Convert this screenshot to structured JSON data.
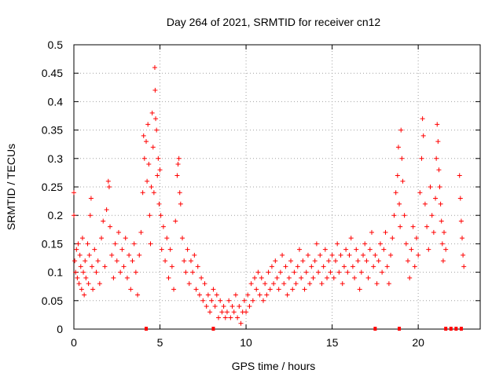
{
  "chart_data": {
    "type": "scatter",
    "title": "Day 264 of 2021, SRMTID for receiver cn12",
    "xlabel": "GPS time / hours",
    "ylabel": "SRMTID / TECUs",
    "xlim": [
      0,
      23.6
    ],
    "ylim": [
      0,
      0.5
    ],
    "x_ticks": [
      0,
      5,
      10,
      15,
      20
    ],
    "x_tick_labels": [
      "0",
      "5",
      "10",
      "15",
      "20"
    ],
    "y_ticks": [
      0,
      0.05,
      0.1,
      0.15,
      0.2,
      0.25,
      0.3,
      0.35,
      0.4,
      0.45,
      0.5
    ],
    "y_tick_labels": [
      "0",
      "0.05",
      "0.1",
      "0.15",
      "0.2",
      "0.25",
      "0.3",
      "0.35",
      "0.4",
      "0.45",
      "0.5"
    ],
    "grid": true,
    "marker": "+",
    "marker_color": "#ff0000",
    "series": [
      {
        "name": "SRMTID",
        "points": [
          [
            0.0,
            0.24
          ],
          [
            0.0,
            0.2
          ],
          [
            0.05,
            0.12
          ],
          [
            0.1,
            0.1
          ],
          [
            0.15,
            0.14
          ],
          [
            0.2,
            0.09
          ],
          [
            0.25,
            0.15
          ],
          [
            0.3,
            0.08
          ],
          [
            0.35,
            0.13
          ],
          [
            0.4,
            0.11
          ],
          [
            0.45,
            0.07
          ],
          [
            0.5,
            0.16
          ],
          [
            0.55,
            0.1
          ],
          [
            0.6,
            0.06
          ],
          [
            0.65,
            0.12
          ],
          [
            0.7,
            0.09
          ],
          [
            0.8,
            0.15
          ],
          [
            0.85,
            0.08
          ],
          [
            0.9,
            0.13
          ],
          [
            0.95,
            0.2
          ],
          [
            1.0,
            0.23
          ],
          [
            1.05,
            0.11
          ],
          [
            1.1,
            0.07
          ],
          [
            1.2,
            0.14
          ],
          [
            1.3,
            0.1
          ],
          [
            1.4,
            0.12
          ],
          [
            1.5,
            0.08
          ],
          [
            1.6,
            0.16
          ],
          [
            1.7,
            0.19
          ],
          [
            1.8,
            0.11
          ],
          [
            1.9,
            0.21
          ],
          [
            2.0,
            0.26
          ],
          [
            2.05,
            0.25
          ],
          [
            2.1,
            0.18
          ],
          [
            2.2,
            0.13
          ],
          [
            2.3,
            0.09
          ],
          [
            2.4,
            0.15
          ],
          [
            2.5,
            0.12
          ],
          [
            2.6,
            0.17
          ],
          [
            2.7,
            0.1
          ],
          [
            2.8,
            0.14
          ],
          [
            2.9,
            0.11
          ],
          [
            3.0,
            0.16
          ],
          [
            3.1,
            0.09
          ],
          [
            3.2,
            0.13
          ],
          [
            3.3,
            0.07
          ],
          [
            3.4,
            0.12
          ],
          [
            3.5,
            0.15
          ],
          [
            3.6,
            0.1
          ],
          [
            3.7,
            0.06
          ],
          [
            3.8,
            0.13
          ],
          [
            3.9,
            0.17
          ],
          [
            4.0,
            0.24
          ],
          [
            4.05,
            0.34
          ],
          [
            4.1,
            0.3
          ],
          [
            4.2,
            0.33
          ],
          [
            4.25,
            0.26
          ],
          [
            4.3,
            0.36
          ],
          [
            4.35,
            0.29
          ],
          [
            4.4,
            0.2
          ],
          [
            4.45,
            0.15
          ],
          [
            4.5,
            0.25
          ],
          [
            4.55,
            0.38
          ],
          [
            4.6,
            0.32
          ],
          [
            4.65,
            0.24
          ],
          [
            4.7,
            0.46
          ],
          [
            4.72,
            0.42
          ],
          [
            4.75,
            0.37
          ],
          [
            4.8,
            0.35
          ],
          [
            4.85,
            0.27
          ],
          [
            4.9,
            0.3
          ],
          [
            4.95,
            0.22
          ],
          [
            5.0,
            0.28
          ],
          [
            5.05,
            0.2
          ],
          [
            5.1,
            0.14
          ],
          [
            5.2,
            0.18
          ],
          [
            5.3,
            0.12
          ],
          [
            5.4,
            0.16
          ],
          [
            5.5,
            0.09
          ],
          [
            5.6,
            0.14
          ],
          [
            5.7,
            0.11
          ],
          [
            5.8,
            0.07
          ],
          [
            5.9,
            0.19
          ],
          [
            6.0,
            0.27
          ],
          [
            6.05,
            0.29
          ],
          [
            6.1,
            0.3
          ],
          [
            6.15,
            0.24
          ],
          [
            6.2,
            0.22
          ],
          [
            6.3,
            0.16
          ],
          [
            6.4,
            0.12
          ],
          [
            6.5,
            0.1
          ],
          [
            6.6,
            0.14
          ],
          [
            6.7,
            0.08
          ],
          [
            6.8,
            0.12
          ],
          [
            6.9,
            0.1
          ],
          [
            7.0,
            0.13
          ],
          [
            7.1,
            0.07
          ],
          [
            7.2,
            0.11
          ],
          [
            7.3,
            0.06
          ],
          [
            7.4,
            0.09
          ],
          [
            7.5,
            0.05
          ],
          [
            7.6,
            0.08
          ],
          [
            7.7,
            0.04
          ],
          [
            7.8,
            0.06
          ],
          [
            7.9,
            0.03
          ],
          [
            8.0,
            0.05
          ],
          [
            8.1,
            0.07
          ],
          [
            8.2,
            0.04
          ],
          [
            8.3,
            0.06
          ],
          [
            8.4,
            0.02
          ],
          [
            8.5,
            0.05
          ],
          [
            8.6,
            0.03
          ],
          [
            8.7,
            0.04
          ],
          [
            8.8,
            0.02
          ],
          [
            8.9,
            0.03
          ],
          [
            9.0,
            0.05
          ],
          [
            9.1,
            0.02
          ],
          [
            9.2,
            0.04
          ],
          [
            9.3,
            0.03
          ],
          [
            9.4,
            0.06
          ],
          [
            9.5,
            0.02
          ],
          [
            9.6,
            0.04
          ],
          [
            9.7,
            0.01
          ],
          [
            9.8,
            0.03
          ],
          [
            9.9,
            0.05
          ],
          [
            10.0,
            0.03
          ],
          [
            10.1,
            0.06
          ],
          [
            10.2,
            0.04
          ],
          [
            10.3,
            0.08
          ],
          [
            10.4,
            0.05
          ],
          [
            10.5,
            0.09
          ],
          [
            10.6,
            0.07
          ],
          [
            10.7,
            0.1
          ],
          [
            10.8,
            0.06
          ],
          [
            10.9,
            0.09
          ],
          [
            11.0,
            0.05
          ],
          [
            11.1,
            0.08
          ],
          [
            11.2,
            0.06
          ],
          [
            11.3,
            0.1
          ],
          [
            11.4,
            0.07
          ],
          [
            11.5,
            0.11
          ],
          [
            11.6,
            0.08
          ],
          [
            11.7,
            0.12
          ],
          [
            11.8,
            0.09
          ],
          [
            11.9,
            0.07
          ],
          [
            12.0,
            0.1
          ],
          [
            12.1,
            0.13
          ],
          [
            12.2,
            0.08
          ],
          [
            12.3,
            0.11
          ],
          [
            12.4,
            0.06
          ],
          [
            12.5,
            0.09
          ],
          [
            12.6,
            0.12
          ],
          [
            12.7,
            0.07
          ],
          [
            12.8,
            0.1
          ],
          [
            12.9,
            0.08
          ],
          [
            13.0,
            0.11
          ],
          [
            13.1,
            0.14
          ],
          [
            13.2,
            0.09
          ],
          [
            13.3,
            0.12
          ],
          [
            13.4,
            0.07
          ],
          [
            13.5,
            0.1
          ],
          [
            13.6,
            0.13
          ],
          [
            13.7,
            0.08
          ],
          [
            13.8,
            0.11
          ],
          [
            13.9,
            0.09
          ],
          [
            14.0,
            0.12
          ],
          [
            14.1,
            0.15
          ],
          [
            14.2,
            0.1
          ],
          [
            14.3,
            0.13
          ],
          [
            14.4,
            0.08
          ],
          [
            14.5,
            0.11
          ],
          [
            14.6,
            0.14
          ],
          [
            14.7,
            0.09
          ],
          [
            14.8,
            0.12
          ],
          [
            14.9,
            0.1
          ],
          [
            15.0,
            0.13
          ],
          [
            15.1,
            0.09
          ],
          [
            15.2,
            0.12
          ],
          [
            15.3,
            0.15
          ],
          [
            15.4,
            0.1
          ],
          [
            15.5,
            0.13
          ],
          [
            15.6,
            0.08
          ],
          [
            15.7,
            0.11
          ],
          [
            15.8,
            0.14
          ],
          [
            15.9,
            0.1
          ],
          [
            16.0,
            0.13
          ],
          [
            16.1,
            0.16
          ],
          [
            16.2,
            0.11
          ],
          [
            16.3,
            0.09
          ],
          [
            16.4,
            0.14
          ],
          [
            16.5,
            0.12
          ],
          [
            16.6,
            0.07
          ],
          [
            16.7,
            0.1
          ],
          [
            16.8,
            0.13
          ],
          [
            16.9,
            0.15
          ],
          [
            17.0,
            0.12
          ],
          [
            17.1,
            0.09
          ],
          [
            17.2,
            0.14
          ],
          [
            17.3,
            0.17
          ],
          [
            17.4,
            0.11
          ],
          [
            17.5,
            0.13
          ],
          [
            17.6,
            0.08
          ],
          [
            17.7,
            0.12
          ],
          [
            17.8,
            0.15
          ],
          [
            17.9,
            0.1
          ],
          [
            18.0,
            0.14
          ],
          [
            18.1,
            0.17
          ],
          [
            18.2,
            0.11
          ],
          [
            18.3,
            0.08
          ],
          [
            18.4,
            0.13
          ],
          [
            18.5,
            0.16
          ],
          [
            18.6,
            0.2
          ],
          [
            18.7,
            0.24
          ],
          [
            18.8,
            0.27
          ],
          [
            18.85,
            0.32
          ],
          [
            18.9,
            0.22
          ],
          [
            18.95,
            0.18
          ],
          [
            19.0,
            0.35
          ],
          [
            19.05,
            0.3
          ],
          [
            19.1,
            0.26
          ],
          [
            19.2,
            0.2
          ],
          [
            19.3,
            0.15
          ],
          [
            19.4,
            0.12
          ],
          [
            19.5,
            0.09
          ],
          [
            19.6,
            0.14
          ],
          [
            19.7,
            0.18
          ],
          [
            19.8,
            0.11
          ],
          [
            19.9,
            0.16
          ],
          [
            20.0,
            0.13
          ],
          [
            20.1,
            0.24
          ],
          [
            20.2,
            0.3
          ],
          [
            20.25,
            0.37
          ],
          [
            20.3,
            0.34
          ],
          [
            20.4,
            0.22
          ],
          [
            20.5,
            0.18
          ],
          [
            20.6,
            0.14
          ],
          [
            20.7,
            0.25
          ],
          [
            20.8,
            0.2
          ],
          [
            20.9,
            0.17
          ],
          [
            21.0,
            0.23
          ],
          [
            21.05,
            0.3
          ],
          [
            21.1,
            0.36
          ],
          [
            21.15,
            0.33
          ],
          [
            21.2,
            0.28
          ],
          [
            21.25,
            0.25
          ],
          [
            21.3,
            0.22
          ],
          [
            21.35,
            0.19
          ],
          [
            21.4,
            0.15
          ],
          [
            21.45,
            0.12
          ],
          [
            21.5,
            0.17
          ],
          [
            21.6,
            0.14
          ],
          [
            22.4,
            0.27
          ],
          [
            22.45,
            0.23
          ],
          [
            22.5,
            0.19
          ],
          [
            22.55,
            0.16
          ],
          [
            22.6,
            0.13
          ],
          [
            22.65,
            0.11
          ]
        ]
      }
    ],
    "zero_gaps": [
      4.2,
      8.1,
      17.5,
      18.9,
      21.6,
      21.9,
      22.2,
      22.5
    ]
  }
}
